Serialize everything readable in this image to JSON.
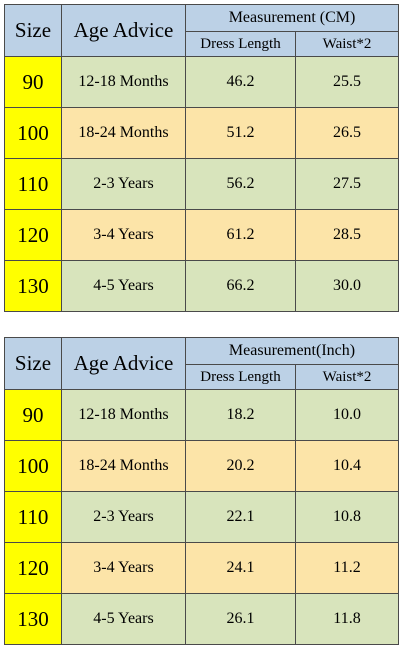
{
  "colors": {
    "header_bg": "#bcd1e6",
    "size_bg": "#ffff00",
    "green_row": "#d8e4bc",
    "peach_row": "#fce4a8",
    "border": "#4a4a4a"
  },
  "tables": [
    {
      "headers": {
        "size": "Size",
        "age": "Age Advice",
        "measurement": "Measurement (CM)",
        "dress_length": "Dress Length",
        "waist": "Waist*2"
      },
      "rows": [
        {
          "size": "90",
          "age": "12-18 Months",
          "dress_length": "46.2",
          "waist": "25.5"
        },
        {
          "size": "100",
          "age": "18-24 Months",
          "dress_length": "51.2",
          "waist": "26.5"
        },
        {
          "size": "110",
          "age": "2-3 Years",
          "dress_length": "56.2",
          "waist": "27.5"
        },
        {
          "size": "120",
          "age": "3-4 Years",
          "dress_length": "61.2",
          "waist": "28.5"
        },
        {
          "size": "130",
          "age": "4-5 Years",
          "dress_length": "66.2",
          "waist": "30.0"
        }
      ]
    },
    {
      "headers": {
        "size": "Size",
        "age": "Age Advice",
        "measurement": "Measurement(Inch)",
        "dress_length": "Dress Length",
        "waist": "Waist*2"
      },
      "rows": [
        {
          "size": "90",
          "age": "12-18 Months",
          "dress_length": "18.2",
          "waist": "10.0"
        },
        {
          "size": "100",
          "age": "18-24 Months",
          "dress_length": "20.2",
          "waist": "10.4"
        },
        {
          "size": "110",
          "age": "2-3 Years",
          "dress_length": "22.1",
          "waist": "10.8"
        },
        {
          "size": "120",
          "age": "3-4 Years",
          "dress_length": "24.1",
          "waist": "11.2"
        },
        {
          "size": "130",
          "age": "4-5 Years",
          "dress_length": "26.1",
          "waist": "11.8"
        }
      ]
    }
  ]
}
